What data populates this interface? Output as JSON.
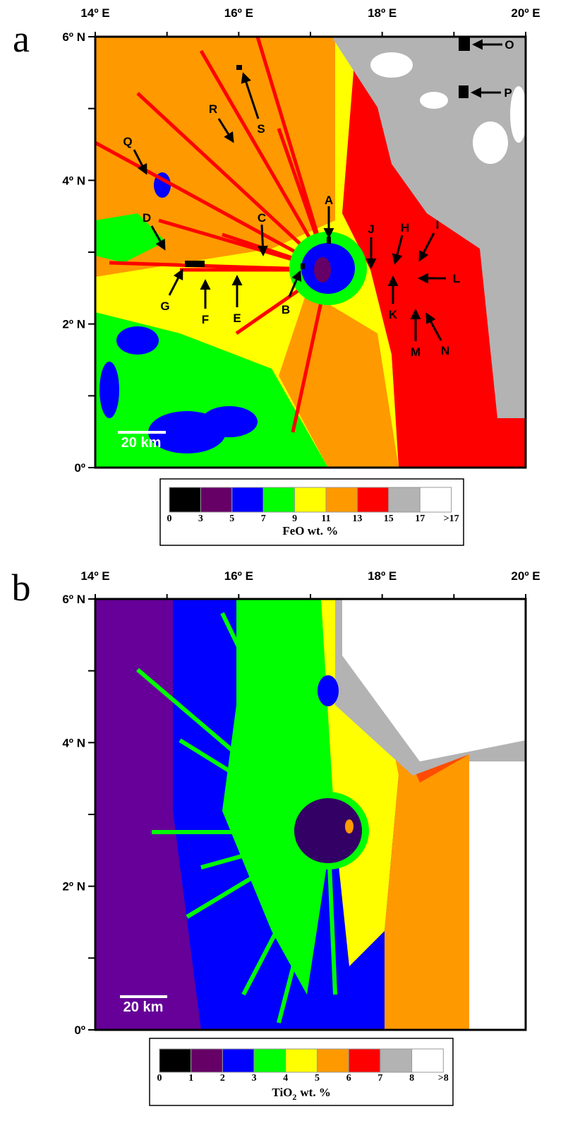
{
  "panels": [
    {
      "letter": "a",
      "lon_ticks": [
        "14º E",
        "16º E",
        "18º E",
        "20º E"
      ],
      "lat_ticks": [
        "6º N",
        "4º N",
        "2º N",
        "0º"
      ],
      "scale_bar": "20 km",
      "labels": [
        "A",
        "B",
        "C",
        "D",
        "E",
        "F",
        "G",
        "H",
        "I",
        "J",
        "K",
        "L",
        "M",
        "N",
        "O",
        "P",
        "Q",
        "R",
        "S"
      ],
      "colorbar": {
        "colors": [
          "#000000",
          "#660066",
          "#0000ff",
          "#00ff00",
          "#ffff00",
          "#ff9900",
          "#ff0000",
          "#b3b3b3",
          "#ffffff"
        ],
        "tick_labels": [
          "0",
          "3",
          "5",
          "7",
          "9",
          "11",
          "13",
          "15",
          "17",
          ">17"
        ],
        "title": "FeO wt. %"
      }
    },
    {
      "letter": "b",
      "lon_ticks": [
        "14º E",
        "16º E",
        "18º E",
        "20º E"
      ],
      "lat_ticks": [
        "6º N",
        "4º N",
        "2º N",
        "0º"
      ],
      "scale_bar": "20 km",
      "colorbar": {
        "colors": [
          "#000000",
          "#660066",
          "#0000ff",
          "#00ff00",
          "#ffff00",
          "#ff9900",
          "#ff0000",
          "#b3b3b3",
          "#ffffff"
        ],
        "tick_labels": [
          "0",
          "1",
          "2",
          "3",
          "4",
          "5",
          "6",
          "7",
          "8",
          ">8"
        ],
        "title": "TiO",
        "title_subscript": "2",
        "title_suffix": "wt. %"
      }
    }
  ]
}
